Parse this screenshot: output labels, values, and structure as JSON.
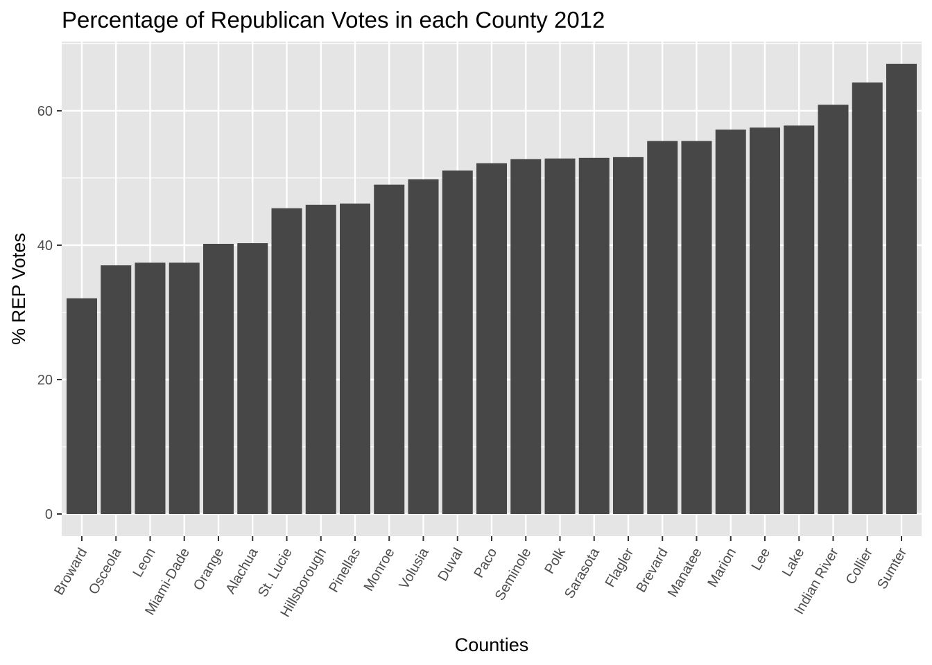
{
  "chart_data": {
    "type": "bar",
    "title": "Percentage of Republican Votes in each County 2012",
    "xlabel": "Counties",
    "ylabel": "% REP Votes",
    "categories": [
      "Broward",
      "Osceola",
      "Leon",
      "Miami-Dade",
      "Orange",
      "Alachua",
      "St. Lucie",
      "Hillsborough",
      "Pinellas",
      "Monroe",
      "Volusia",
      "Duval",
      "Paco",
      "Seminole",
      "Polk",
      "Sarasota",
      "Flagler",
      "Brevard",
      "Manatee",
      "Marion",
      "Lee",
      "Lake",
      "Indian River",
      "Collier",
      "Sumter"
    ],
    "values": [
      32.1,
      37.0,
      37.4,
      37.4,
      40.2,
      40.3,
      45.5,
      46.0,
      46.2,
      49.0,
      49.8,
      51.1,
      52.2,
      52.8,
      52.9,
      53.0,
      53.1,
      55.5,
      55.5,
      57.2,
      57.5,
      57.8,
      60.9,
      64.2,
      67.0
    ],
    "yticks": [
      0,
      20,
      40,
      60
    ],
    "ylim": [
      -3.3,
      70.3
    ],
    "grid": true,
    "colors": {
      "bar": "#474747",
      "panel": "#e5e5e5",
      "grid": "#ffffff"
    }
  }
}
